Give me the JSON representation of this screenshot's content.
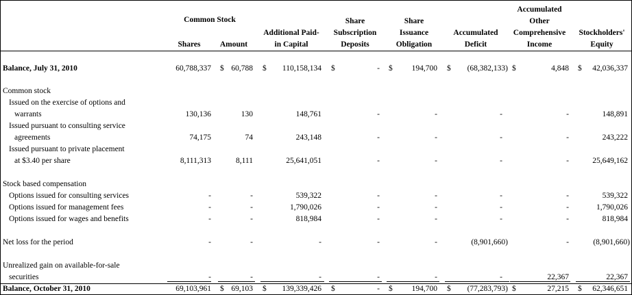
{
  "headers": {
    "common_stock": "Common Stock",
    "shares": "Shares",
    "amount": "Amount",
    "apic_1": "Additional Paid-",
    "apic_2": "in Capital",
    "sub_1": "Share",
    "sub_2": "Subscription",
    "sub_3": "Deposits",
    "obl_1": "Share",
    "obl_2": "Issuance",
    "obl_3": "Obligation",
    "def_1": "Accumulated",
    "def_2": "Deficit",
    "oci_1": "Accumulated",
    "oci_2": "Other",
    "oci_3": "Comprehensive",
    "oci_4": "Income",
    "eq_1": "Stockholders'",
    "eq_2": "Equity"
  },
  "currency": "$",
  "rows": {
    "balance_open": {
      "label": "Balance, July 31, 2010",
      "shares": "60,788,337",
      "amount": "60,788",
      "apic": "110,158,134",
      "sub": "-",
      "obl": "194,700",
      "def": "(68,382,133)",
      "oci": "4,848",
      "eq": "42,036,337"
    },
    "common_stock_label": "Common stock",
    "exercise": {
      "label_1": "Issued on the exercise of options and",
      "label_2": "warrants",
      "shares": "130,136",
      "amount": "130",
      "apic": "148,761",
      "sub": "-",
      "obl": "-",
      "def": "-",
      "oci": "-",
      "eq": "148,891"
    },
    "consulting": {
      "label_1": "Issued pursuant to consulting service",
      "label_2": "agreements",
      "shares": "74,175",
      "amount": "74",
      "apic": "243,148",
      "sub": "-",
      "obl": "-",
      "def": "-",
      "oci": "-",
      "eq": "243,222"
    },
    "private": {
      "label_1": "Issued pursuant to private placement",
      "label_2": "at $3.40 per share",
      "shares": "8,111,313",
      "amount": "8,111",
      "apic": "25,641,051",
      "sub": "-",
      "obl": "-",
      "def": "-",
      "oci": "-",
      "eq": "25,649,162"
    },
    "sbc_label": "Stock based compensation",
    "opt_consulting": {
      "label": "Options issued for consulting services",
      "shares": "-",
      "amount": "-",
      "apic": "539,322",
      "sub": "-",
      "obl": "-",
      "def": "-",
      "oci": "-",
      "eq": "539,322"
    },
    "opt_mgmt": {
      "label": "Options issued for management fees",
      "shares": "-",
      "amount": "-",
      "apic": "1,790,026",
      "sub": "-",
      "obl": "-",
      "def": "-",
      "oci": "-",
      "eq": "1,790,026"
    },
    "opt_wages": {
      "label": "Options issued for wages and benefits",
      "shares": "-",
      "amount": "-",
      "apic": "818,984",
      "sub": "-",
      "obl": "-",
      "def": "-",
      "oci": "-",
      "eq": "818,984"
    },
    "net_loss": {
      "label": "Net loss for the period",
      "shares": "-",
      "amount": "-",
      "apic": "-",
      "sub": "-",
      "obl": "-",
      "def": "(8,901,660)",
      "oci": "-",
      "eq": "(8,901,660)"
    },
    "unrealized": {
      "label_1": "Unrealized gain on available-for-sale",
      "label_2": "securities",
      "shares": "-",
      "amount": "-",
      "apic": "-",
      "sub": "-",
      "obl": "-",
      "def": "-",
      "oci": "22,367",
      "eq": "22,367"
    },
    "balance_close": {
      "label": "Balance, October 31, 2010",
      "shares": "69,103,961",
      "amount": "69,103",
      "apic": "139,339,426",
      "sub": "-",
      "obl": "194,700",
      "def": "(77,283,793)",
      "oci": "27,215",
      "eq": "62,346,651"
    }
  }
}
